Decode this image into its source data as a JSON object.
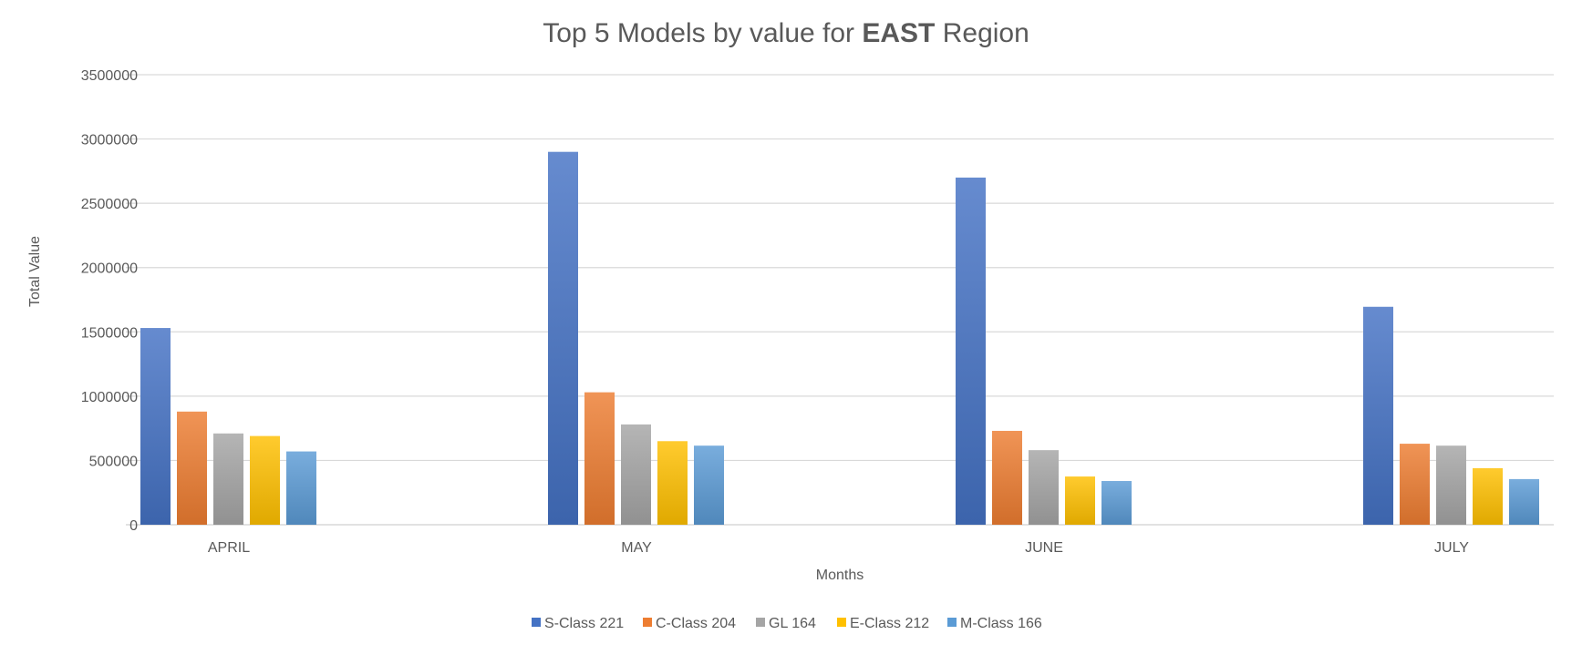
{
  "chart_data": {
    "type": "bar",
    "title_prefix": "Top 5 Models by value for ",
    "title_bold": "EAST",
    "title_suffix": " Region",
    "xlabel": "Months",
    "ylabel": "Total Value",
    "categories": [
      "APRIL",
      "MAY",
      "JUNE",
      "JULY"
    ],
    "ylim": [
      0,
      3500000
    ],
    "yticks": [
      0,
      500000,
      1000000,
      1500000,
      2000000,
      2500000,
      3000000,
      3500000
    ],
    "ytick_labels": [
      "0",
      "500000",
      "1000000",
      "1500000",
      "2000000",
      "2500000",
      "3000000",
      "3500000"
    ],
    "grid": true,
    "legend_position": "bottom",
    "series": [
      {
        "name": "S-Class 221",
        "color": "#4472C4",
        "values": [
          1530000,
          2900000,
          2700000,
          1695000
        ]
      },
      {
        "name": "C-Class 204",
        "color": "#ED7D31",
        "values": [
          880000,
          1030000,
          730000,
          630000
        ]
      },
      {
        "name": "GL 164",
        "color": "#A5A5A5",
        "values": [
          710000,
          780000,
          580000,
          615000
        ]
      },
      {
        "name": "E-Class 212",
        "color": "#FFC000",
        "values": [
          690000,
          650000,
          375000,
          440000
        ]
      },
      {
        "name": "M-Class 166",
        "color": "#5B9BD5",
        "values": [
          570000,
          615000,
          340000,
          355000
        ]
      }
    ]
  }
}
